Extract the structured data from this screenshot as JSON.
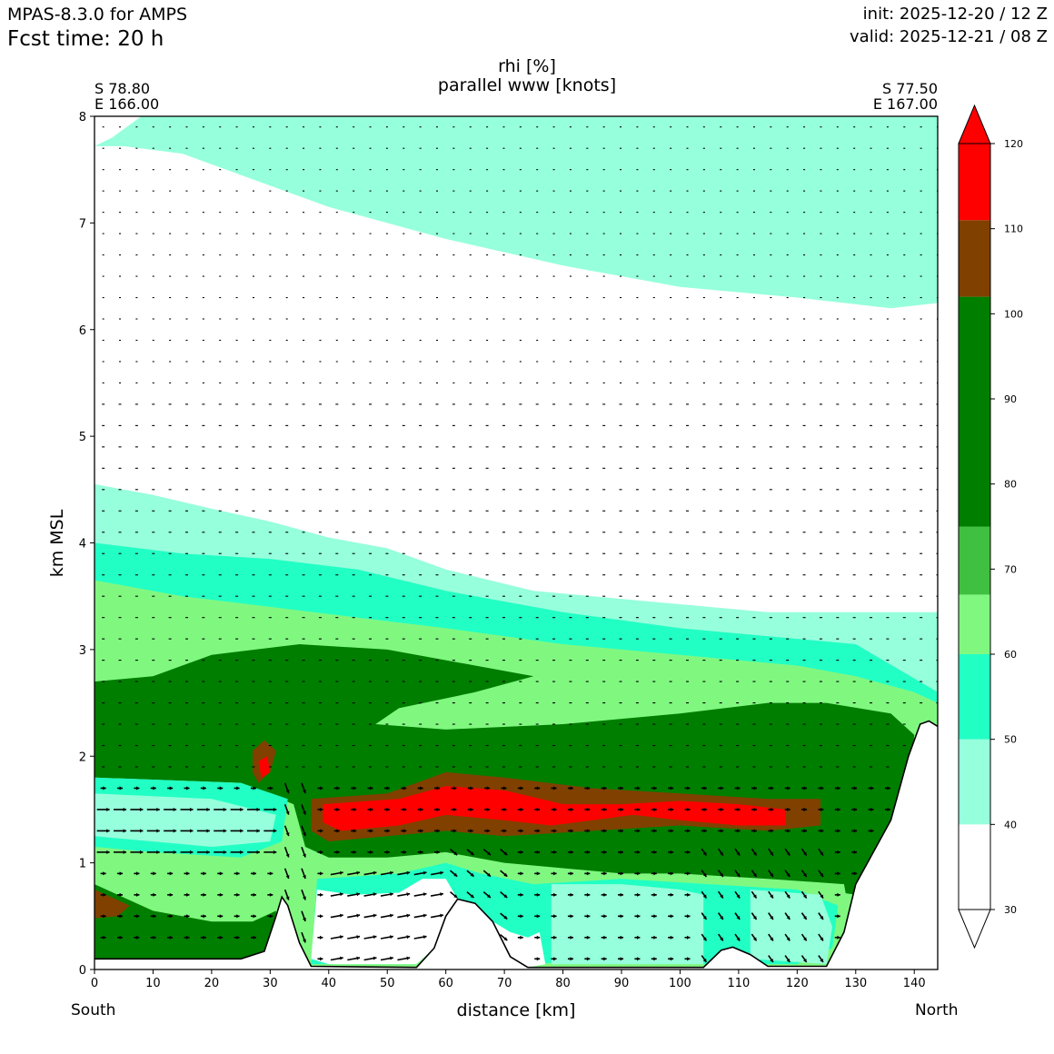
{
  "header": {
    "model": "MPAS-8.3.0 for AMPS",
    "fcst_time": "Fcst time:   20 h",
    "init": "init: 2025-12-20 / 12 Z",
    "valid": "valid: 2025-12-21 / 08 Z"
  },
  "endpoints": {
    "left_lat": "S 78.80",
    "left_lon": "E 166.00",
    "right_lat": "S 77.50",
    "right_lon": "E 167.00",
    "left_dir": "South",
    "right_dir": "North"
  },
  "colors": {
    "c30": "#ffffff",
    "c40": "#96ffdc",
    "c50": "#22ffc4",
    "c60": "#80f880",
    "c70": "#40c040",
    "c80": "#007e00",
    "c100": "#804000",
    "c110": "#ff0000"
  },
  "chart_data": {
    "type": "heatmap",
    "title": "rhi [%]",
    "subtitle": "parallel www [knots]",
    "xlabel": "distance [km]",
    "ylabel": "km MSL",
    "xlim": [
      0,
      144
    ],
    "ylim": [
      0,
      8
    ],
    "xticks": [
      0,
      10,
      20,
      30,
      40,
      50,
      60,
      70,
      80,
      90,
      100,
      110,
      120,
      130,
      140
    ],
    "yticks": [
      0,
      1,
      2,
      3,
      4,
      5,
      6,
      7,
      8
    ],
    "colorbar": {
      "levels": [
        30,
        40,
        50,
        60,
        70,
        80,
        90,
        100,
        110,
        120
      ],
      "bands": [
        {
          "from": 30,
          "to": 40,
          "color": "#ffffff"
        },
        {
          "from": 40,
          "to": 50,
          "color": "#96ffdc"
        },
        {
          "from": 50,
          "to": 60,
          "color": "#22ffc4"
        },
        {
          "from": 60,
          "to": 67,
          "color": "#80f880"
        },
        {
          "from": 67,
          "to": 75,
          "color": "#40c040"
        },
        {
          "from": 75,
          "to": 102,
          "color": "#007e00"
        },
        {
          "from": 102,
          "to": 111,
          "color": "#804000"
        },
        {
          "from": 111,
          "to": 120,
          "color": "#ff0000"
        }
      ],
      "extend": "both"
    },
    "terrain": [
      [
        0,
        0.1
      ],
      [
        25,
        0.1
      ],
      [
        29,
        0.17
      ],
      [
        31,
        0.5
      ],
      [
        32,
        0.68
      ],
      [
        33,
        0.6
      ],
      [
        35,
        0.25
      ],
      [
        37,
        0.03
      ],
      [
        55,
        0.02
      ],
      [
        58,
        0.2
      ],
      [
        60,
        0.5
      ],
      [
        62,
        0.66
      ],
      [
        65,
        0.62
      ],
      [
        68,
        0.45
      ],
      [
        71,
        0.12
      ],
      [
        74,
        0.02
      ],
      [
        104,
        0.02
      ],
      [
        107,
        0.18
      ],
      [
        109,
        0.21
      ],
      [
        112,
        0.14
      ],
      [
        115,
        0.03
      ],
      [
        125,
        0.03
      ],
      [
        128,
        0.35
      ],
      [
        130,
        0.8
      ],
      [
        132,
        1.0
      ],
      [
        136,
        1.4
      ],
      [
        139,
        2.0
      ],
      [
        141,
        2.3
      ],
      [
        142.5,
        2.33
      ],
      [
        144,
        2.28
      ]
    ],
    "regions": [
      {
        "band": 40,
        "pts": [
          [
            0,
            7.72
          ],
          [
            3,
            7.8
          ],
          [
            8,
            8
          ],
          [
            144,
            8
          ],
          [
            144,
            6.25
          ],
          [
            136,
            6.2
          ],
          [
            120,
            6.3
          ],
          [
            100,
            6.4
          ],
          [
            80,
            6.6
          ],
          [
            60,
            6.85
          ],
          [
            40,
            7.15
          ],
          [
            25,
            7.45
          ],
          [
            15,
            7.65
          ],
          [
            5,
            7.72
          ]
        ]
      },
      {
        "band": 40,
        "pts": [
          [
            0,
            4.55
          ],
          [
            10,
            4.45
          ],
          [
            20,
            4.32
          ],
          [
            30,
            4.2
          ],
          [
            40,
            4.05
          ],
          [
            50,
            3.95
          ],
          [
            60,
            3.75
          ],
          [
            75,
            3.55
          ],
          [
            95,
            3.45
          ],
          [
            115,
            3.35
          ],
          [
            130,
            3.35
          ],
          [
            144,
            3.35
          ],
          [
            144,
            0
          ],
          [
            0,
            0
          ]
        ]
      },
      {
        "band": 50,
        "pts": [
          [
            0,
            4.0
          ],
          [
            15,
            3.9
          ],
          [
            30,
            3.85
          ],
          [
            45,
            3.75
          ],
          [
            60,
            3.55
          ],
          [
            80,
            3.35
          ],
          [
            100,
            3.2
          ],
          [
            120,
            3.1
          ],
          [
            130,
            3.05
          ],
          [
            144,
            2.6
          ],
          [
            144,
            0
          ],
          [
            0,
            0
          ]
        ]
      },
      {
        "band": 60,
        "pts": [
          [
            0,
            3.65
          ],
          [
            15,
            3.5
          ],
          [
            30,
            3.4
          ],
          [
            45,
            3.3
          ],
          [
            60,
            3.2
          ],
          [
            80,
            3.05
          ],
          [
            100,
            2.95
          ],
          [
            120,
            2.85
          ],
          [
            130,
            2.75
          ],
          [
            140,
            2.6
          ],
          [
            144,
            2.5
          ],
          [
            144,
            0
          ],
          [
            0,
            0
          ]
        ]
      },
      {
        "band": 80,
        "pts": [
          [
            0,
            2.7
          ],
          [
            10,
            2.75
          ],
          [
            20,
            2.95
          ],
          [
            35,
            3.05
          ],
          [
            50,
            3.0
          ],
          [
            60,
            2.9
          ],
          [
            70,
            2.8
          ],
          [
            75,
            2.75
          ],
          [
            65,
            2.6
          ],
          [
            52,
            2.45
          ],
          [
            48,
            2.3
          ],
          [
            60,
            2.25
          ],
          [
            80,
            2.3
          ],
          [
            100,
            2.4
          ],
          [
            115,
            2.5
          ],
          [
            125,
            2.5
          ],
          [
            136,
            2.4
          ],
          [
            140,
            2.2
          ],
          [
            139,
            1.6
          ],
          [
            137,
            1.05
          ],
          [
            134,
            0.8
          ],
          [
            130,
            0.7
          ],
          [
            124,
            0.75
          ],
          [
            114,
            0.8
          ],
          [
            100,
            0.85
          ],
          [
            80,
            0.95
          ],
          [
            70,
            1.0
          ],
          [
            60,
            1.1
          ],
          [
            50,
            1.05
          ],
          [
            40,
            1.05
          ],
          [
            36,
            1.15
          ],
          [
            34,
            1.55
          ],
          [
            25,
            1.75
          ],
          [
            0,
            1.8
          ]
        ]
      },
      {
        "band": 50,
        "pts": [
          [
            0,
            1.8
          ],
          [
            25,
            1.75
          ],
          [
            33,
            1.6
          ],
          [
            32,
            1.2
          ],
          [
            25,
            1.05
          ],
          [
            10,
            1.1
          ],
          [
            0,
            1.15
          ]
        ]
      },
      {
        "band": 40,
        "pts": [
          [
            0,
            1.65
          ],
          [
            20,
            1.6
          ],
          [
            31,
            1.45
          ],
          [
            30,
            1.2
          ],
          [
            20,
            1.15
          ],
          [
            10,
            1.2
          ],
          [
            0,
            1.25
          ]
        ]
      },
      {
        "band": 60,
        "pts": [
          [
            0,
            0.85
          ],
          [
            15,
            0.9
          ],
          [
            28,
            0.9
          ],
          [
            32,
            0.8
          ],
          [
            31,
            0.5
          ],
          [
            25,
            0.45
          ],
          [
            0,
            0.5
          ]
        ]
      },
      {
        "band": 80,
        "pts": [
          [
            0,
            0.8
          ],
          [
            10,
            0.55
          ],
          [
            20,
            0.45
          ],
          [
            27,
            0.45
          ],
          [
            31,
            0.55
          ],
          [
            31,
            0.35
          ],
          [
            29,
            0.17
          ],
          [
            25,
            0.1
          ],
          [
            0,
            0.1
          ]
        ]
      },
      {
        "band": 100,
        "pts": [
          [
            0,
            0.75
          ],
          [
            4,
            0.65
          ],
          [
            6,
            0.6
          ],
          [
            4,
            0.5
          ],
          [
            0,
            0.48
          ]
        ]
      },
      {
        "band": 100,
        "pts": [
          [
            27,
            2.05
          ],
          [
            29,
            2.15
          ],
          [
            31,
            2.05
          ],
          [
            30,
            1.85
          ],
          [
            28,
            1.75
          ],
          [
            27,
            1.85
          ]
        ]
      },
      {
        "band": 110,
        "pts": [
          [
            28,
            1.95
          ],
          [
            29.5,
            2.0
          ],
          [
            30,
            1.85
          ],
          [
            28.5,
            1.8
          ]
        ]
      },
      {
        "band": 100,
        "pts": [
          [
            37,
            1.6
          ],
          [
            50,
            1.65
          ],
          [
            60,
            1.85
          ],
          [
            70,
            1.8
          ],
          [
            85,
            1.7
          ],
          [
            100,
            1.65
          ],
          [
            115,
            1.6
          ],
          [
            124,
            1.6
          ],
          [
            124,
            1.35
          ],
          [
            115,
            1.3
          ],
          [
            100,
            1.35
          ],
          [
            85,
            1.3
          ],
          [
            70,
            1.25
          ],
          [
            60,
            1.3
          ],
          [
            50,
            1.25
          ],
          [
            40,
            1.2
          ],
          [
            37,
            1.3
          ]
        ]
      },
      {
        "band": 110,
        "pts": [
          [
            39,
            1.55
          ],
          [
            52,
            1.6
          ],
          [
            60,
            1.72
          ],
          [
            70,
            1.68
          ],
          [
            80,
            1.55
          ],
          [
            90,
            1.55
          ],
          [
            100,
            1.58
          ],
          [
            110,
            1.55
          ],
          [
            118,
            1.5
          ],
          [
            118,
            1.35
          ],
          [
            110,
            1.35
          ],
          [
            100,
            1.4
          ],
          [
            92,
            1.45
          ],
          [
            85,
            1.4
          ],
          [
            78,
            1.35
          ],
          [
            70,
            1.4
          ],
          [
            60,
            1.45
          ],
          [
            52,
            1.35
          ],
          [
            42,
            1.3
          ],
          [
            39,
            1.38
          ]
        ]
      },
      {
        "band": 60,
        "pts": [
          [
            40,
            0.95
          ],
          [
            50,
            0.95
          ],
          [
            58,
            1.05
          ],
          [
            62,
            1.0
          ],
          [
            70,
            0.9
          ],
          [
            78,
            0.95
          ],
          [
            90,
            0.9
          ],
          [
            100,
            0.9
          ],
          [
            115,
            0.85
          ],
          [
            128,
            0.8
          ],
          [
            129,
            0.5
          ],
          [
            125,
            0.1
          ],
          [
            115,
            0.05
          ],
          [
            104,
            0.05
          ],
          [
            80,
            0.05
          ],
          [
            74,
            0.05
          ],
          [
            71,
            0.15
          ],
          [
            68,
            0.45
          ],
          [
            62,
            0.66
          ],
          [
            58,
            0.2
          ],
          [
            55,
            0.05
          ],
          [
            37,
            0.05
          ],
          [
            36,
            0.6
          ]
        ]
      },
      {
        "band": 50,
        "pts": [
          [
            38,
            0.85
          ],
          [
            52,
            0.9
          ],
          [
            60,
            1.0
          ],
          [
            66,
            0.9
          ],
          [
            75,
            0.8
          ],
          [
            90,
            0.85
          ],
          [
            105,
            0.8
          ],
          [
            120,
            0.75
          ],
          [
            127,
            0.6
          ],
          [
            126,
            0.2
          ],
          [
            120,
            0.05
          ],
          [
            104,
            0.05
          ],
          [
            90,
            0.1
          ],
          [
            74,
            0.05
          ],
          [
            71,
            0.15
          ],
          [
            68,
            0.45
          ],
          [
            62,
            0.66
          ],
          [
            58,
            0.2
          ],
          [
            55,
            0.05
          ],
          [
            37,
            0.05
          ]
        ]
      },
      {
        "band": 40,
        "pts": [
          [
            78,
            0.8
          ],
          [
            90,
            0.8
          ],
          [
            100,
            0.75
          ],
          [
            104,
            0.7
          ],
          [
            104,
            0.05
          ],
          [
            78,
            0.05
          ]
        ]
      },
      {
        "band": 40,
        "pts": [
          [
            112,
            0.75
          ],
          [
            124,
            0.7
          ],
          [
            126,
            0.4
          ],
          [
            125,
            0.05
          ],
          [
            112,
            0.1
          ]
        ]
      },
      {
        "band": 30,
        "pts": [
          [
            38,
            0.75
          ],
          [
            44,
            0.7
          ],
          [
            52,
            0.72
          ],
          [
            56,
            0.85
          ],
          [
            60,
            0.85
          ],
          [
            62,
            0.66
          ],
          [
            58,
            0.2
          ],
          [
            55,
            0.05
          ],
          [
            40,
            0.05
          ],
          [
            37,
            0.1
          ]
        ]
      },
      {
        "band": 30,
        "pts": [
          [
            68,
            0.45
          ],
          [
            71,
            0.35
          ],
          [
            74,
            0.3
          ],
          [
            76,
            0.35
          ],
          [
            77,
            0.05
          ],
          [
            74,
            0.02
          ],
          [
            71,
            0.12
          ]
        ]
      }
    ]
  }
}
